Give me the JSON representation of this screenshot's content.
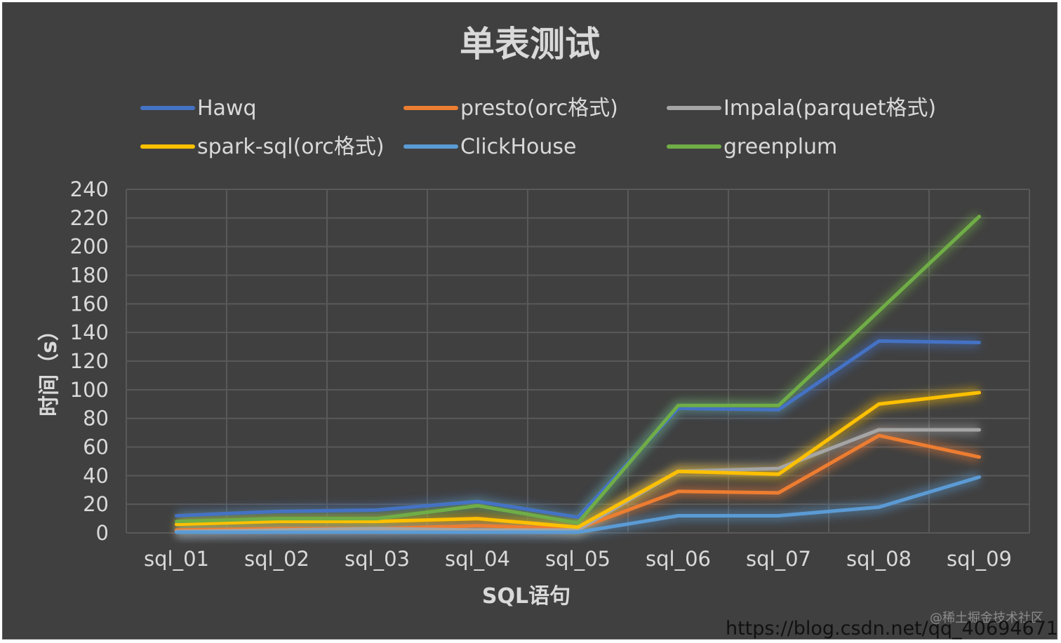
{
  "chart_data": {
    "type": "line",
    "title": "单表测试",
    "xlabel": "SQL语句",
    "ylabel": "时间（s）",
    "ylim": [
      0,
      240
    ],
    "y_ticks": [
      0,
      20,
      40,
      60,
      80,
      100,
      120,
      140,
      160,
      180,
      200,
      220,
      240
    ],
    "grid": true,
    "legend_position": "top",
    "categories": [
      "sql_01",
      "sql_02",
      "sql_03",
      "sql_04",
      "sql_05",
      "sql_06",
      "sql_07",
      "sql_08",
      "sql_09"
    ],
    "series": [
      {
        "name": "Hawq",
        "color": "#4472c4",
        "values": [
          12,
          15,
          16,
          22,
          11,
          87,
          86,
          134,
          133
        ]
      },
      {
        "name": "presto(orc格式)",
        "color": "#ed7d31",
        "values": [
          2,
          3,
          3,
          5,
          3,
          29,
          28,
          68,
          53
        ]
      },
      {
        "name": "Impala(parquet格式)",
        "color": "#a5a5a5",
        "values": [
          1,
          2,
          3,
          2,
          2,
          43,
          45,
          72,
          72
        ]
      },
      {
        "name": "spark-sql(orc格式)",
        "color": "#ffc000",
        "values": [
          6,
          8,
          8,
          10,
          4,
          43,
          41,
          90,
          98
        ]
      },
      {
        "name": "ClickHouse",
        "color": "#5b9bd5",
        "values": [
          0.5,
          0.5,
          0.5,
          0.5,
          0.5,
          12,
          12,
          18,
          39
        ]
      },
      {
        "name": "greenplum",
        "color": "#70ad47",
        "values": [
          8,
          10,
          10,
          19,
          7,
          89,
          89,
          155,
          221
        ]
      }
    ]
  },
  "watermark": {
    "faint": "@稀土掘金技术社区",
    "url": "https://blog.csdn.net/qq_40694671"
  }
}
